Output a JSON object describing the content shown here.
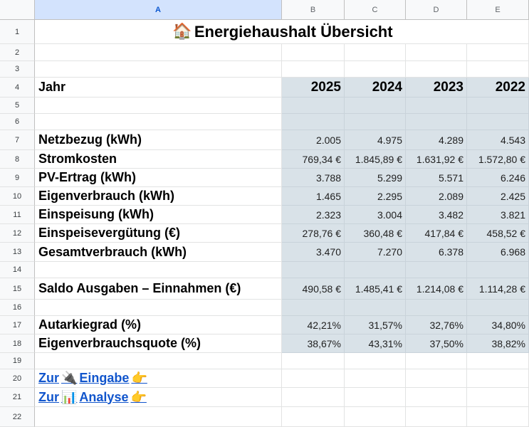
{
  "columns": [
    {
      "id": "A",
      "selected": true
    },
    {
      "id": "B",
      "selected": false
    },
    {
      "id": "C",
      "selected": false
    },
    {
      "id": "D",
      "selected": false
    },
    {
      "id": "E",
      "selected": false
    }
  ],
  "row_numbers": [
    "1",
    "2",
    "3",
    "4",
    "5",
    "6",
    "7",
    "8",
    "9",
    "10",
    "11",
    "12",
    "13",
    "14",
    "15",
    "16",
    "17",
    "18",
    "19",
    "20",
    "21",
    "22"
  ],
  "title": {
    "icon": "🏠",
    "text": "Energiehaushalt Übersicht"
  },
  "header_row": {
    "label": "Jahr",
    "years": [
      "2025",
      "2024",
      "2023",
      "2022"
    ]
  },
  "rows": [
    {
      "row": 7,
      "label": "Netzbezug (kWh)",
      "values": [
        "2.005",
        "4.975",
        "4.289",
        "4.543"
      ]
    },
    {
      "row": 8,
      "label": "Stromkosten",
      "values": [
        "769,34 €",
        "1.845,89 €",
        "1.631,92 €",
        "1.572,80 €"
      ]
    },
    {
      "row": 9,
      "label": "PV-Ertrag (kWh)",
      "values": [
        "3.788",
        "5.299",
        "5.571",
        "6.246"
      ]
    },
    {
      "row": 10,
      "label": "Eigenverbrauch (kWh)",
      "values": [
        "1.465",
        "2.295",
        "2.089",
        "2.425"
      ]
    },
    {
      "row": 11,
      "label": "Einspeisung (kWh)",
      "values": [
        "2.323",
        "3.004",
        "3.482",
        "3.821"
      ]
    },
    {
      "row": 12,
      "label": "Einspeisevergütung (€)",
      "values": [
        "278,76 €",
        "360,48 €",
        "417,84 €",
        "458,52 €"
      ]
    },
    {
      "row": 13,
      "label": "Gesamtverbrauch (kWh)",
      "values": [
        "3.470",
        "7.270",
        "6.378",
        "6.968"
      ]
    },
    {
      "row": 15,
      "label": "Saldo Ausgaben – Einnahmen  (€)",
      "values": [
        "490,58 €",
        "1.485,41 €",
        "1.214,08 €",
        "1.114,28 €"
      ]
    },
    {
      "row": 17,
      "label": "Autarkiegrad (%)",
      "values": [
        "42,21%",
        "31,57%",
        "32,76%",
        "34,80%"
      ]
    },
    {
      "row": 18,
      "label": "Eigenverbrauchsquote (%)",
      "values": [
        "38,67%",
        "43,31%",
        "37,50%",
        "38,82%"
      ]
    }
  ],
  "links": [
    {
      "row": 20,
      "prefix": "Zur",
      "icon": "🔌",
      "text": "Eingabe",
      "pointer": "👉"
    },
    {
      "row": 21,
      "prefix": "Zur",
      "icon": "📊",
      "text": "Analyse",
      "pointer": "👉"
    }
  ]
}
